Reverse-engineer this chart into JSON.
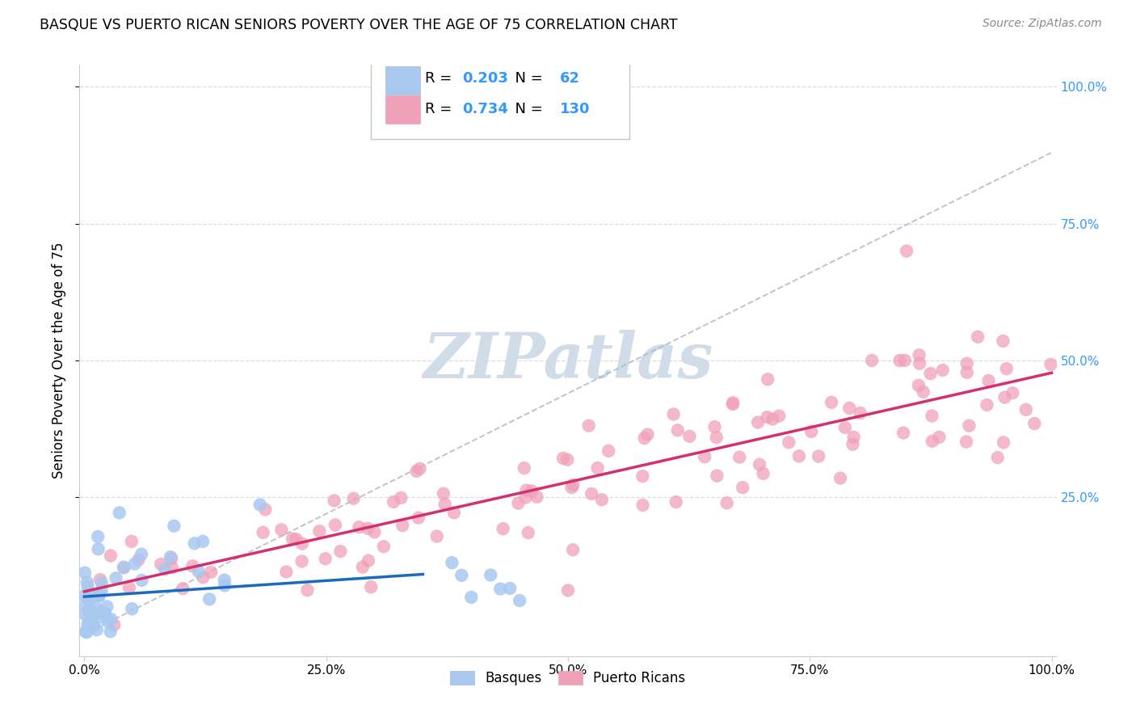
{
  "title": "BASQUE VS PUERTO RICAN SENIORS POVERTY OVER THE AGE OF 75 CORRELATION CHART",
  "source": "Source: ZipAtlas.com",
  "ylabel": "Seniors Poverty Over the Age of 75",
  "basque_R": "0.203",
  "basque_N": "62",
  "puerto_rican_R": "0.734",
  "puerto_rican_N": "130",
  "basque_color": "#a8c8f0",
  "puerto_rican_color": "#f0a0b8",
  "basque_line_color": "#1a6bbf",
  "puerto_rican_line_color": "#d43070",
  "dash_line_color": "#b0b8c8",
  "watermark_color": "#d0dce8",
  "background_color": "#ffffff",
  "x_tick_labels": [
    "0.0%",
    "25.0%",
    "50.0%",
    "75.0%",
    "100.0%"
  ],
  "y_right_labels": [
    "25.0%",
    "50.0%",
    "75.0%",
    "100.0%"
  ],
  "grid_color": "#d8dde8",
  "legend_value_color": "#3399ff",
  "source_color": "#888888"
}
